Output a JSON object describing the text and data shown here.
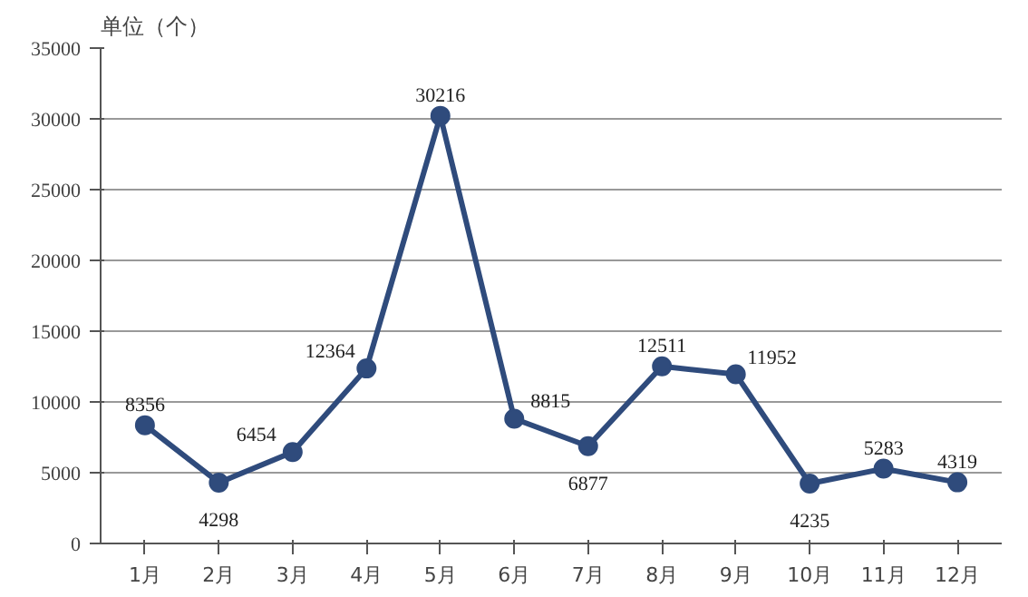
{
  "chart_data": {
    "type": "line",
    "ylabel": "单位（个）",
    "categories": [
      "1月",
      "2月",
      "3月",
      "4月",
      "5月",
      "6月",
      "7月",
      "8月",
      "9月",
      "10月",
      "11月",
      "12月"
    ],
    "series": [
      {
        "color": "#2f4b7c",
        "values": [
          8356,
          4298,
          6454,
          12364,
          30216,
          8815,
          6877,
          12511,
          11952,
          4235,
          5283,
          4319
        ]
      }
    ],
    "ylim": [
      0,
      35000
    ],
    "yticks": [
      0,
      5000,
      10000,
      15000,
      20000,
      25000,
      30000,
      35000
    ],
    "grid": "y",
    "marker": "circle",
    "data_labels": true
  }
}
